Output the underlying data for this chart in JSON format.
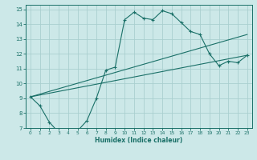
{
  "xlabel": "Humidex (Indice chaleur)",
  "bg_color": "#cce8e8",
  "grid_color": "#aacfcf",
  "line_color": "#1a7068",
  "xlim": [
    -0.5,
    23.5
  ],
  "ylim": [
    7,
    15.3
  ],
  "xticks": [
    0,
    1,
    2,
    3,
    4,
    5,
    6,
    7,
    8,
    9,
    10,
    11,
    12,
    13,
    14,
    15,
    16,
    17,
    18,
    19,
    20,
    21,
    22,
    23
  ],
  "yticks": [
    7,
    8,
    9,
    10,
    11,
    12,
    13,
    14,
    15
  ],
  "main_line": {
    "x": [
      0,
      1,
      2,
      3,
      4,
      5,
      6,
      7,
      8,
      9,
      10,
      11,
      12,
      13,
      14,
      15,
      16,
      17,
      18,
      19,
      20,
      21,
      22,
      23
    ],
    "y": [
      9.1,
      8.5,
      7.4,
      6.7,
      6.7,
      6.8,
      7.5,
      9.0,
      10.9,
      11.1,
      14.3,
      14.8,
      14.4,
      14.3,
      14.9,
      14.7,
      14.1,
      13.5,
      13.3,
      12.0,
      11.2,
      11.5,
      11.4,
      11.9
    ]
  },
  "trend_lines": [
    {
      "x": [
        0,
        23
      ],
      "y": [
        9.1,
        13.3
      ]
    },
    {
      "x": [
        0,
        23
      ],
      "y": [
        9.1,
        11.9
      ]
    }
  ]
}
